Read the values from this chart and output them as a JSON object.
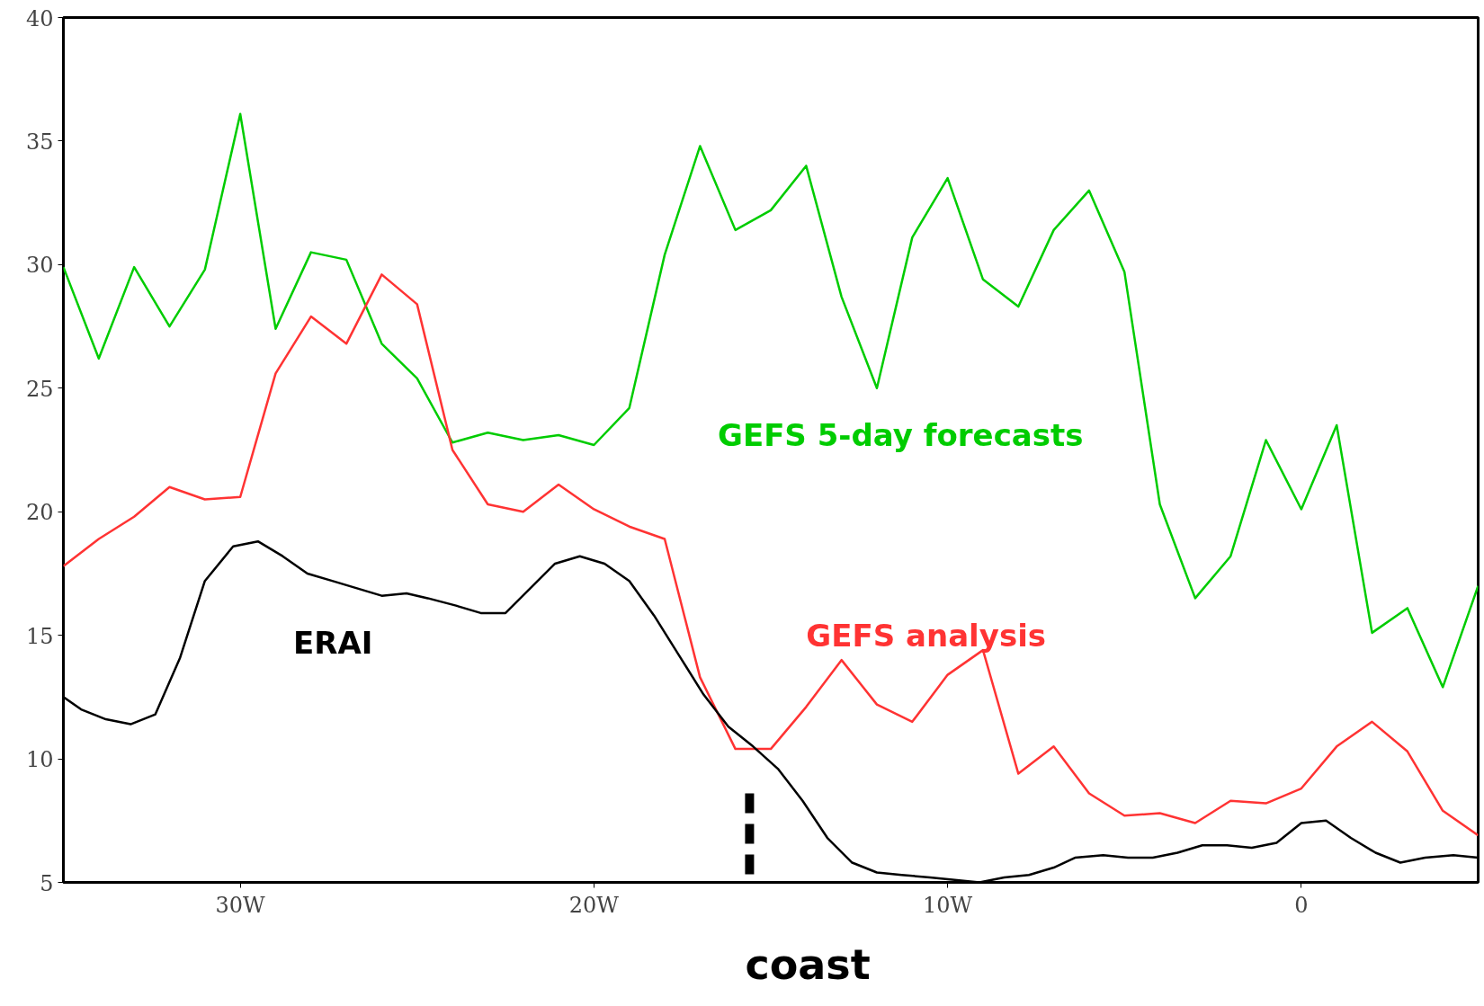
{
  "chart_data": {
    "type": "line",
    "xlim": [
      -35,
      5
    ],
    "ylim": [
      5,
      40
    ],
    "xticks": [
      {
        "value": -30,
        "label": "30W"
      },
      {
        "value": -20,
        "label": "20W"
      },
      {
        "value": -10,
        "label": "10W"
      },
      0
    ],
    "yticks": [
      5,
      10,
      15,
      20,
      25,
      30,
      35,
      40
    ],
    "grid": false,
    "marker": "none",
    "line_style": "solid",
    "series": [
      {
        "name": "GEFS 5-day forecasts",
        "color": "#00cc00",
        "x": [
          -35,
          -34,
          -33,
          -32,
          -31,
          -30,
          -29,
          -28,
          -27,
          -26,
          -25,
          -24,
          -23,
          -22,
          -21,
          -20,
          -19,
          -18,
          -17,
          -16,
          -15,
          -14,
          -13,
          -12,
          -11,
          -10,
          -9,
          -8,
          -7,
          -6,
          -5,
          -4,
          -3,
          -2,
          -1,
          0,
          1,
          2,
          3,
          4,
          5
        ],
        "values": [
          29.9,
          26.2,
          29.9,
          27.5,
          29.8,
          36.1,
          27.4,
          30.5,
          30.2,
          26.8,
          25.4,
          22.8,
          23.2,
          22.9,
          23.1,
          22.7,
          24.2,
          30.4,
          34.8,
          31.4,
          32.2,
          34.0,
          28.7,
          25.0,
          31.1,
          33.5,
          29.4,
          28.3,
          31.4,
          33.0,
          29.7,
          20.3,
          16.5,
          18.2,
          22.9,
          20.1,
          23.5,
          15.1,
          16.1,
          12.9,
          17.0
        ]
      },
      {
        "name": "GEFS analysis",
        "color": "#ff3333",
        "x": [
          -35,
          -34,
          -33,
          -32,
          -31,
          -30,
          -29,
          -28,
          -27,
          -26,
          -25,
          -24,
          -23,
          -22,
          -21,
          -20,
          -19,
          -18,
          -17,
          -16,
          -15,
          -14,
          -13,
          -12,
          -11,
          -10,
          -9,
          -8,
          -7,
          -6,
          -5,
          -4,
          -3,
          -2,
          -1,
          0,
          1,
          2,
          3,
          4,
          5
        ],
        "values": [
          17.8,
          18.9,
          19.8,
          21.0,
          20.5,
          20.6,
          25.6,
          27.9,
          26.8,
          29.6,
          28.4,
          22.5,
          20.3,
          20.0,
          21.1,
          20.1,
          19.4,
          18.9,
          13.3,
          10.4,
          10.4,
          12.1,
          14.0,
          12.2,
          11.5,
          13.4,
          14.4,
          9.4,
          10.5,
          8.6,
          7.7,
          7.8,
          7.4,
          8.3,
          8.2,
          8.8,
          10.5,
          11.5,
          10.3,
          7.9,
          6.9
        ]
      },
      {
        "name": "ERAI",
        "color": "#000000",
        "x": [
          -35,
          -34.5,
          -33.8,
          -33.1,
          -32.4,
          -31.7,
          -31.0,
          -30.2,
          -29.5,
          -28.8,
          -28.1,
          -27.4,
          -26.7,
          -26.0,
          -25.3,
          -24.7,
          -23.9,
          -23.2,
          -22.5,
          -21.8,
          -21.1,
          -20.4,
          -19.7,
          -19.0,
          -18.3,
          -17.6,
          -16.9,
          -16.2,
          -15.5,
          -14.8,
          -14.1,
          -13.4,
          -12.7,
          -12.0,
          -11.3,
          -10.5,
          -9.8,
          -9.1,
          -8.4,
          -7.7,
          -7.0,
          -6.4,
          -5.6,
          -4.9,
          -4.2,
          -3.5,
          -2.8,
          -2.1,
          -1.4,
          -0.7,
          0,
          0.7,
          1.4,
          2.1,
          2.8,
          3.5,
          4.3,
          5
        ],
        "values": [
          12.5,
          12.0,
          11.6,
          11.4,
          11.8,
          14.1,
          17.2,
          18.6,
          18.8,
          18.2,
          17.5,
          17.2,
          16.9,
          16.6,
          16.7,
          16.5,
          16.2,
          15.9,
          15.9,
          16.9,
          17.9,
          18.2,
          17.9,
          17.2,
          15.8,
          14.2,
          12.6,
          11.3,
          10.5,
          9.6,
          8.3,
          6.8,
          5.8,
          5.4,
          5.3,
          5.2,
          5.1,
          5.0,
          5.2,
          5.3,
          5.6,
          6.0,
          6.1,
          6.0,
          6.0,
          6.2,
          6.5,
          6.5,
          6.4,
          6.6,
          7.4,
          7.5,
          6.8,
          6.2,
          5.8,
          6.0,
          6.1,
          6.0
        ]
      }
    ],
    "ref_lines": [
      {
        "axis": "x",
        "value": -15.6,
        "label": "coast",
        "color": "#000000",
        "line_style": "dashed"
      }
    ]
  }
}
